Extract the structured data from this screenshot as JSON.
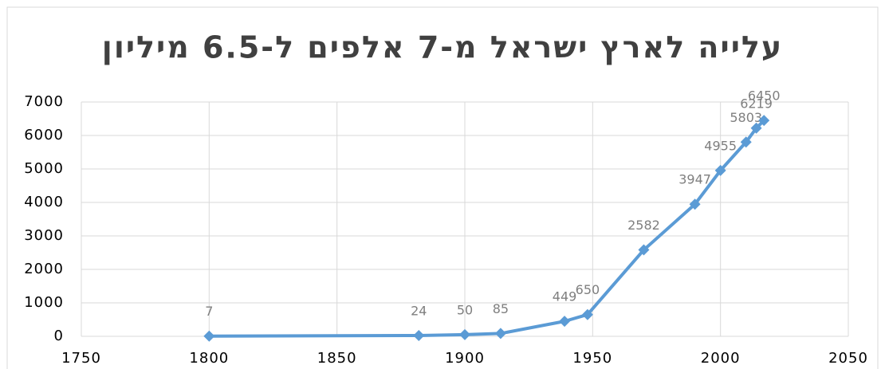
{
  "chart_data": {
    "type": "line",
    "title": "עלייה לארץ ישראל מ-7 אלפים ל-6.5 מיליון",
    "x": [
      1800,
      1882,
      1900,
      1914,
      1939,
      1948,
      1970,
      1990,
      2000,
      2010,
      2014,
      2017
    ],
    "values": [
      7,
      24,
      50,
      85,
      449,
      650,
      2582,
      3947,
      4955,
      5803,
      6219,
      6450
    ],
    "color": "#5b9bd5",
    "xlim": [
      1750,
      2050
    ],
    "xticks": [
      1750,
      1800,
      1850,
      1900,
      1950,
      2000,
      2050
    ],
    "ylim": [
      0,
      7000
    ],
    "yticks": [
      0,
      1000,
      2000,
      3000,
      4000,
      5000,
      6000,
      7000
    ],
    "grid": true
  }
}
